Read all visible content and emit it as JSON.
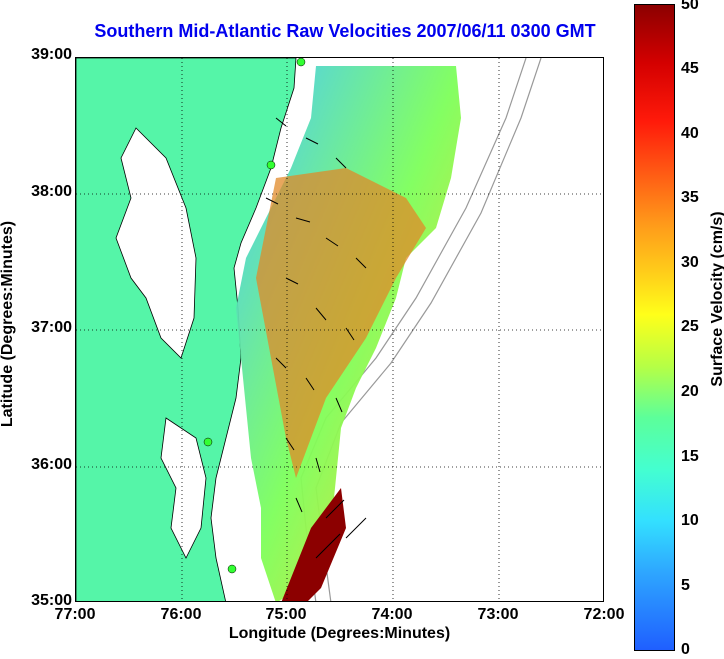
{
  "title": "Southern Mid-Atlantic Raw Velocities 2007/06/11 0300 GMT",
  "x_axis": {
    "label": "Longitude (Degrees:Minutes)",
    "ticks": [
      "77:00",
      "76:00",
      "75:00",
      "74:00",
      "73:00",
      "72:00"
    ]
  },
  "y_axis": {
    "label": "Latitude (Degrees:Minutes)",
    "ticks": [
      "39:00",
      "38:00",
      "37:00",
      "36:00",
      "35:00"
    ]
  },
  "colorbar": {
    "label": "Surface Velocity (cm/s)",
    "ticks": [
      "50",
      "45",
      "40",
      "35",
      "30",
      "25",
      "20",
      "15",
      "10",
      "5",
      "0"
    ],
    "min": 0,
    "max": 50
  },
  "colors": {
    "land": "#55f5a8",
    "title": "#0000ee",
    "bathymetry": "#999999",
    "vector": "#000000"
  },
  "map": {
    "lon_range": [
      -77,
      -72
    ],
    "lat_range": [
      35,
      39
    ],
    "grid": true
  }
}
